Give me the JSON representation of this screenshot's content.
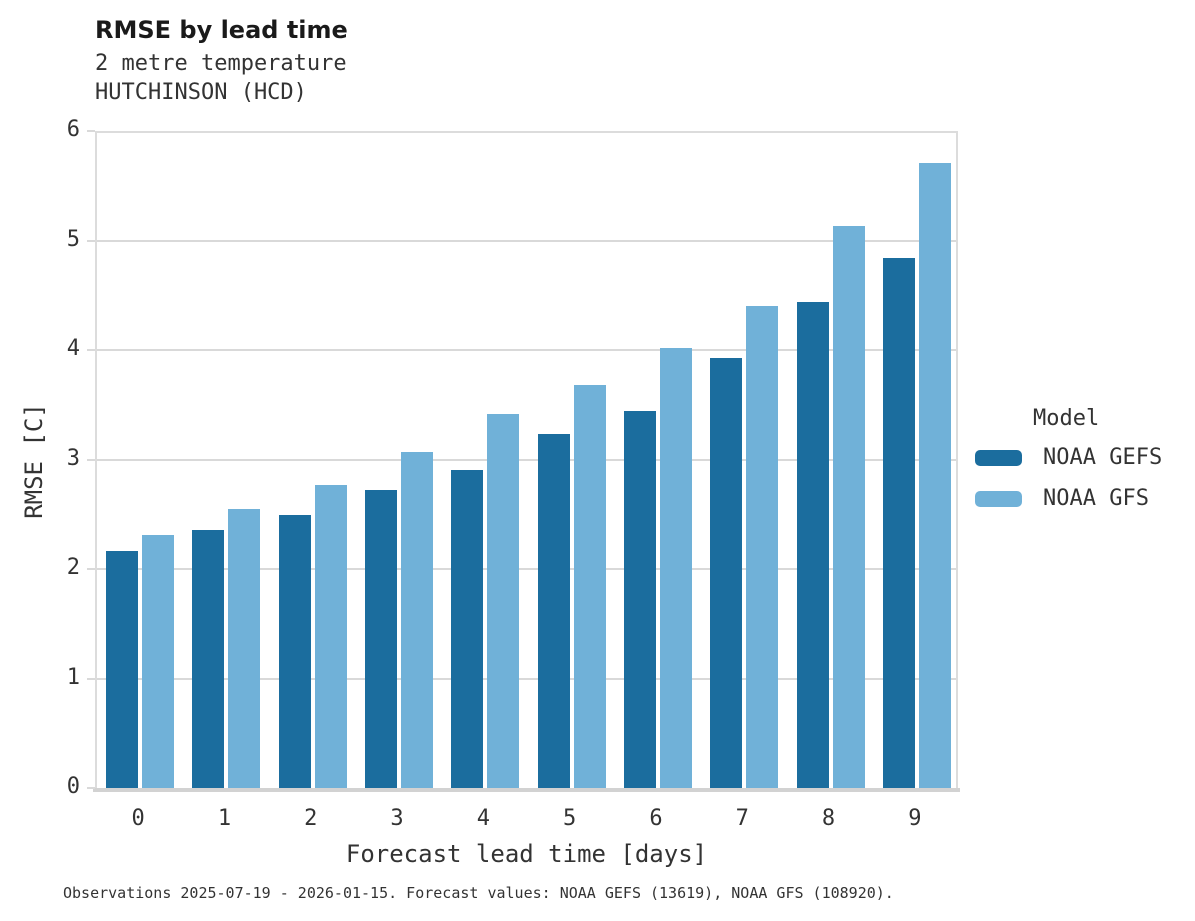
{
  "header": {
    "title": "RMSE by lead time",
    "subtitle_line1": "2 metre temperature",
    "subtitle_line2": "HUTCHINSON (HCD)"
  },
  "chart_data": {
    "type": "bar",
    "title": "RMSE by lead time",
    "subtitle": [
      "2 metre temperature",
      "HUTCHINSON (HCD)"
    ],
    "categories": [
      "0",
      "1",
      "2",
      "3",
      "4",
      "5",
      "6",
      "7",
      "8",
      "9"
    ],
    "series": [
      {
        "name": "NOAA GEFS",
        "color": "#1b6d9e",
        "values": [
          2.16,
          2.36,
          2.49,
          2.72,
          2.9,
          3.23,
          3.44,
          3.93,
          4.44,
          4.84
        ]
      },
      {
        "name": "NOAA GFS",
        "color": "#70b1d8",
        "values": [
          2.31,
          2.55,
          2.77,
          3.07,
          3.42,
          3.68,
          4.02,
          4.4,
          5.13,
          5.71
        ]
      }
    ],
    "xlabel": "Forecast lead time [days]",
    "ylabel": "RMSE [C]",
    "ylim": [
      0,
      6
    ],
    "yticks": [
      0,
      1,
      2,
      3,
      4,
      5,
      6
    ],
    "grid": "horizontal",
    "gridline_color": "#d9d9d9",
    "legend_title": "Model",
    "legend_position": "right"
  },
  "footer": {
    "caption": "Observations 2025-07-19 - 2026-01-15. Forecast values: NOAA GEFS (13619), NOAA GFS (108920)."
  }
}
